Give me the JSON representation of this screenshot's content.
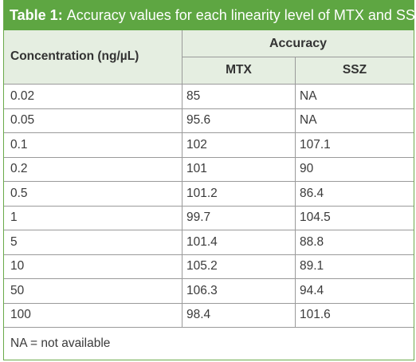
{
  "table": {
    "title_lead": "Table 1:",
    "title_text": "Accuracy values for each linearity level of MTX and SSZ.",
    "header": {
      "concentration": "Concentration (ng/µL)",
      "accuracy": "Accuracy",
      "mtx": "MTX",
      "ssz": "SSZ"
    },
    "rows": [
      {
        "concentration": "0.02",
        "mtx": "85",
        "ssz": "NA"
      },
      {
        "concentration": "0.05",
        "mtx": "95.6",
        "ssz": "NA"
      },
      {
        "concentration": "0.1",
        "mtx": "102",
        "ssz": "107.1"
      },
      {
        "concentration": "0.2",
        "mtx": "101",
        "ssz": "90"
      },
      {
        "concentration": "0.5",
        "mtx": "101.2",
        "ssz": "86.4"
      },
      {
        "concentration": "1",
        "mtx": "99.7",
        "ssz": "104.5"
      },
      {
        "concentration": "5",
        "mtx": "101.4",
        "ssz": "88.8"
      },
      {
        "concentration": "10",
        "mtx": "105.2",
        "ssz": "89.1"
      },
      {
        "concentration": "50",
        "mtx": "106.3",
        "ssz": "94.4"
      },
      {
        "concentration": "100",
        "mtx": "98.4",
        "ssz": "101.6"
      }
    ],
    "footnote": "NA = not available"
  },
  "colors": {
    "title_bg": "#5ea642",
    "header_bg": "#e5eee1",
    "rule": "#9a9a9a"
  }
}
